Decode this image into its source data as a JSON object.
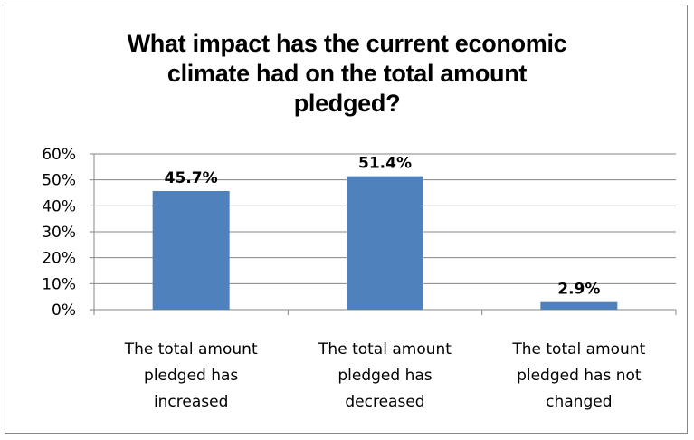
{
  "title_lines": [
    "What impact has the current economic",
    "climate had on the total amount",
    "pledged?"
  ],
  "colors": {
    "bar": "#4F81BD",
    "grid": "#868686",
    "axis": "#868686"
  },
  "chart_data": {
    "type": "bar",
    "title": "What impact has the current economic climate had on the total amount pledged?",
    "categories": [
      [
        "The total  amount",
        "pledged has",
        "increased"
      ],
      [
        "The total  amount",
        "pledged has",
        "decreased"
      ],
      [
        "The total  amount",
        "pledged has not",
        "changed"
      ]
    ],
    "values": [
      45.7,
      51.4,
      2.9
    ],
    "data_labels": [
      "45.7%",
      "51.4%",
      "2.9%"
    ],
    "ylim": [
      0,
      60
    ],
    "yticks": [
      0,
      10,
      20,
      30,
      40,
      50,
      60
    ],
    "ytick_labels": [
      "0%",
      "10%",
      "20%",
      "30%",
      "40%",
      "50%",
      "60%"
    ],
    "grid": true,
    "legend": "none"
  }
}
